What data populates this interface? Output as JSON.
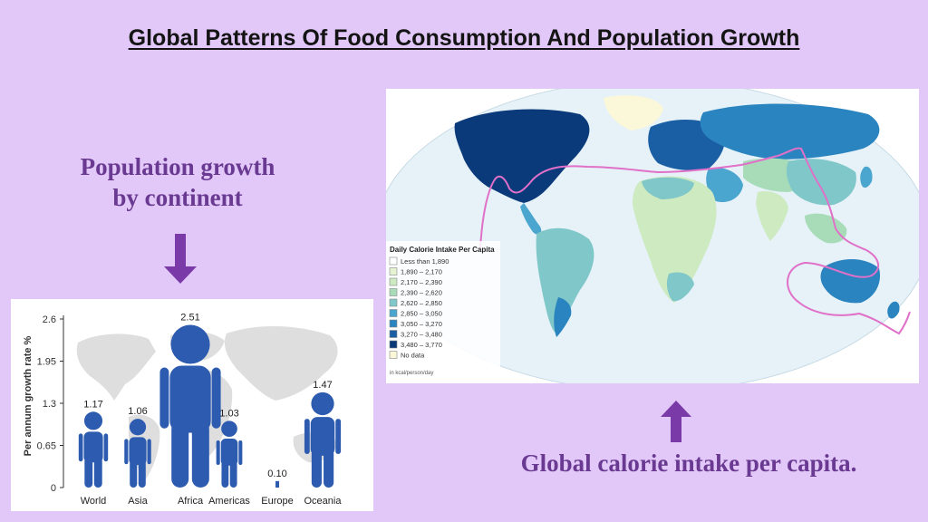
{
  "slide": {
    "title": "Global Patterns Of Food Consumption And Population Growth",
    "population_heading_line1": "Population growth",
    "population_heading_line2": "by continent",
    "calorie_caption": "Global calorie intake per capita."
  },
  "arrow_color": "#7a3aa8",
  "population_chart": {
    "ylabel": "Per annum growth rate %",
    "yticks": [
      "2.6",
      "1.95",
      "1.3",
      "0.65",
      "0"
    ],
    "ylim": [
      0,
      2.6
    ],
    "figure_color": "#2c5bb0",
    "categories": [
      "World",
      "Asia",
      "Africa",
      "Americas",
      "Europe",
      "Oceania"
    ],
    "value_labels": [
      "1.17",
      "1.06",
      "2.51",
      "1.03",
      "0.10",
      "1.47"
    ]
  },
  "chart_data": {
    "type": "bar",
    "categories": [
      "World",
      "Asia",
      "Africa",
      "Americas",
      "Europe",
      "Oceania"
    ],
    "values": [
      1.17,
      1.06,
      2.51,
      1.03,
      0.1,
      1.47
    ],
    "ylabel": "Per annum growth rate %",
    "ylim": [
      0,
      2.6
    ]
  },
  "calorie_map": {
    "legend_title": "Daily Calorie Intake Per Capita",
    "legend_items": [
      {
        "label": "Less than 1,890",
        "color": "#ffffff"
      },
      {
        "label": "1,890 – 2,170",
        "color": "#e6f3d2"
      },
      {
        "label": "2,170 – 2,390",
        "color": "#cdeac0"
      },
      {
        "label": "2,390 – 2,620",
        "color": "#a8dcb9"
      },
      {
        "label": "2,620 – 2,850",
        "color": "#7fc7c9"
      },
      {
        "label": "2,850 – 3,050",
        "color": "#4ba6cf"
      },
      {
        "label": "3,050 – 3,270",
        "color": "#2a84c0"
      },
      {
        "label": "3,270 – 3,480",
        "color": "#1a5fa4"
      },
      {
        "label": "3,480 – 3,770",
        "color": "#0a3a7a"
      },
      {
        "label": "No data",
        "color": "#fbf7d9"
      }
    ],
    "legend_unit": "in kcal/person/day",
    "ocean_color": "#e6f2f8",
    "route_color": "#e070c8"
  }
}
